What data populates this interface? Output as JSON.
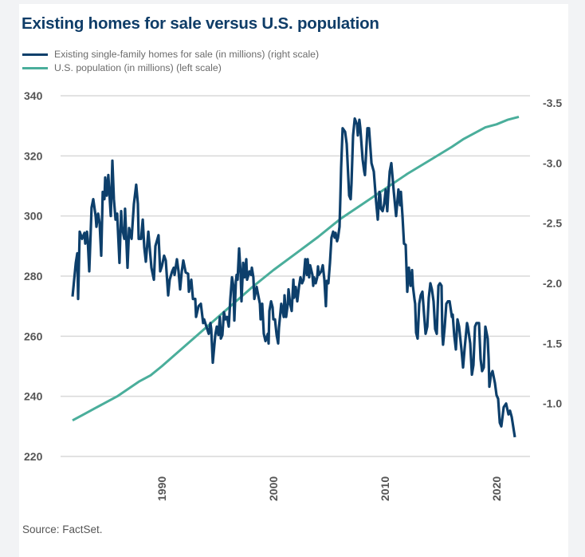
{
  "chart_data": {
    "type": "line",
    "title": "Existing homes for sale versus U.S. population",
    "source": "Source: FactSet.",
    "legend_placement": "top-left",
    "grid": true,
    "xlim": [
      1982,
      2022
    ],
    "x_ticks": [
      "1990",
      "2000",
      "2010",
      "2020"
    ],
    "x_tick_values": [
      1990,
      2000,
      2010,
      2020
    ],
    "left_axis": {
      "ylim": [
        220,
        340
      ],
      "ticks": [
        "340",
        "320",
        "300",
        "280",
        "260",
        "240",
        "220"
      ],
      "tick_values": [
        340,
        320,
        300,
        280,
        260,
        240,
        220
      ]
    },
    "right_axis": {
      "ylim": [
        0.5,
        3.5
      ],
      "ticks": [
        "-3.5",
        "-3.0",
        "-2.5",
        "-2.0",
        "-1.5",
        "-1.0"
      ],
      "tick_values": [
        3.5,
        3.0,
        2.5,
        2.0,
        1.5,
        1.0
      ]
    },
    "series": [
      {
        "name": "Existing single-family homes for sale (in millions) (right scale)",
        "axis": "right",
        "color": "#0d3f6b",
        "x": [
          1982.0,
          1982.29,
          1982.43,
          1982.5,
          1982.64,
          1982.86,
          1983.07,
          1983.14,
          1983.29,
          1983.36,
          1983.5,
          1983.71,
          1983.86,
          1984.07,
          1984.14,
          1984.29,
          1984.43,
          1984.57,
          1984.71,
          1984.86,
          1984.93,
          1985.07,
          1985.21,
          1985.43,
          1985.57,
          1985.71,
          1985.86,
          1986.0,
          1986.21,
          1986.36,
          1986.43,
          1986.64,
          1986.71,
          1986.93,
          1987.07,
          1987.29,
          1987.5,
          1987.71,
          1987.86,
          1987.93,
          1988.14,
          1988.29,
          1988.43,
          1988.57,
          1988.79,
          1989.07,
          1989.29,
          1989.43,
          1989.71,
          1989.86,
          1990.0,
          1990.21,
          1990.36,
          1990.57,
          1990.71,
          1990.93,
          1991.07,
          1991.14,
          1991.36,
          1991.5,
          1991.64,
          1991.79,
          1991.93,
          1992.14,
          1992.36,
          1992.43,
          1992.64,
          1992.79,
          1993.0,
          1993.07,
          1993.29,
          1993.5,
          1993.71,
          1993.79,
          1994.0,
          1994.21,
          1994.36,
          1994.43,
          1994.57,
          1994.79,
          1994.93,
          1995.07,
          1995.21,
          1995.29,
          1995.43,
          1995.57,
          1995.71,
          1995.86,
          1996.0,
          1996.14,
          1996.29,
          1996.43,
          1996.5,
          1996.64,
          1996.71,
          1996.79,
          1996.93,
          1997.07,
          1997.14,
          1997.29,
          1997.43,
          1997.57,
          1997.64,
          1997.86,
          1998.0,
          1998.07,
          1998.21,
          1998.29,
          1998.5,
          1998.64,
          1998.79,
          1998.86,
          1999.0,
          1999.14,
          1999.29,
          1999.5,
          1999.57,
          1999.64,
          1999.79,
          1999.93,
          2000.0,
          2000.14,
          2000.29,
          2000.43,
          2000.5,
          2000.71,
          2000.93,
          2001.0,
          2001.14,
          2001.29,
          2001.36,
          2001.5,
          2001.64,
          2001.79,
          2001.86,
          2002.0,
          2002.14,
          2002.29,
          2002.43,
          2002.57,
          2002.71,
          2002.86,
          2002.93,
          2003.0,
          2003.07,
          2003.21,
          2003.29,
          2003.5,
          2003.57,
          2003.64,
          2003.79,
          2003.93,
          2004.0,
          2004.07,
          2004.29,
          2004.43,
          2004.57,
          2004.71,
          2004.79,
          2004.93,
          2005.07,
          2005.21,
          2005.36,
          2005.5,
          2005.57,
          2005.71,
          2005.79,
          2005.93,
          2006.0,
          2006.07,
          2006.21,
          2006.43,
          2006.57,
          2006.79,
          2006.93,
          2007.0,
          2007.14,
          2007.29,
          2007.5,
          2007.57,
          2007.71,
          2007.79,
          2008.0,
          2008.14,
          2008.21,
          2008.43,
          2008.57,
          2008.79,
          2009.0,
          2009.21,
          2009.36,
          2009.5,
          2009.57,
          2009.64,
          2009.79,
          2009.93,
          2010.07,
          2010.21,
          2010.29,
          2010.43,
          2010.57,
          2010.79,
          2011.0,
          2011.21,
          2011.36,
          2011.43,
          2011.57,
          2011.71,
          2011.86,
          2012.0,
          2012.14,
          2012.29,
          2012.43,
          2012.5,
          2012.64,
          2012.71,
          2012.79,
          2012.93,
          2013.07,
          2013.21,
          2013.36,
          2013.5,
          2013.64,
          2013.79,
          2013.93,
          2014.07,
          2014.21,
          2014.36,
          2014.5,
          2014.64,
          2014.79,
          2014.93,
          2015.07,
          2015.14,
          2015.21,
          2015.36,
          2015.5,
          2015.64,
          2015.79,
          2016.0,
          2016.07,
          2016.21,
          2016.36,
          2016.5,
          2016.64,
          2016.86,
          2017.0,
          2017.14,
          2017.36,
          2017.43,
          2017.64,
          2017.79,
          2017.93,
          2018.07,
          2018.21,
          2018.43,
          2018.57,
          2018.71,
          2018.86,
          2019.0,
          2019.21,
          2019.29,
          2019.36,
          2019.5,
          2019.64,
          2019.86,
          2020.0,
          2020.14,
          2020.29,
          2020.43,
          2020.64,
          2020.86,
          2021.07,
          2021.21,
          2021.36,
          2021.64
        ],
        "y": [
          1.83,
          2.11,
          2.19,
          1.81,
          2.37,
          2.31,
          2.36,
          2.27,
          2.37,
          2.31,
          2.04,
          2.57,
          2.64,
          2.5,
          2.41,
          2.52,
          2.44,
          2.17,
          2.7,
          2.64,
          2.82,
          2.67,
          2.84,
          2.5,
          2.96,
          2.64,
          2.47,
          2.52,
          2.11,
          2.54,
          2.41,
          2.31,
          2.56,
          2.07,
          2.4,
          2.31,
          2.6,
          2.76,
          2.6,
          2.31,
          2.31,
          2.47,
          2.24,
          2.12,
          2.37,
          2.07,
          1.97,
          2.25,
          2.34,
          2.04,
          2.08,
          2.17,
          2.13,
          1.84,
          1.97,
          2.04,
          2.07,
          2.01,
          2.14,
          2.04,
          1.89,
          2.04,
          2.13,
          2.03,
          2.02,
          1.87,
          1.97,
          1.81,
          1.81,
          1.66,
          1.75,
          1.77,
          1.61,
          1.64,
          1.58,
          1.52,
          1.61,
          1.56,
          1.28,
          1.51,
          1.58,
          1.51,
          1.66,
          1.48,
          1.51,
          1.7,
          1.64,
          1.66,
          1.58,
          1.81,
          1.99,
          1.91,
          1.63,
          1.96,
          2.01,
          1.97,
          2.23,
          2.01,
          1.79,
          2.11,
          1.99,
          2.14,
          1.97,
          2.04,
          2.01,
          2.07,
          1.99,
          1.81,
          1.91,
          1.84,
          1.77,
          1.64,
          1.77,
          1.52,
          1.46,
          1.52,
          1.44,
          1.71,
          1.79,
          1.74,
          1.64,
          1.64,
          1.51,
          1.44,
          1.57,
          1.77,
          1.66,
          1.84,
          1.66,
          1.77,
          1.89,
          1.77,
          1.71,
          1.97,
          1.82,
          1.91,
          1.79,
          1.91,
          1.99,
          1.94,
          1.97,
          2.14,
          2.05,
          2.01,
          2.14,
          1.99,
          2.09,
          2.01,
          1.92,
          1.99,
          1.94,
          1.99,
          2.08,
          2.01,
          2.04,
          2.09,
          1.97,
          1.75,
          1.96,
          1.94,
          2.11,
          2.32,
          2.37,
          2.32,
          2.36,
          2.29,
          2.32,
          2.41,
          2.64,
          2.9,
          3.23,
          3.2,
          3.1,
          2.67,
          2.64,
          2.77,
          3.17,
          3.31,
          3.26,
          3.17,
          3.3,
          3.23,
          2.97,
          2.87,
          2.84,
          3.23,
          3.23,
          2.94,
          2.87,
          2.62,
          2.47,
          2.7,
          2.68,
          2.56,
          2.54,
          2.6,
          2.72,
          2.54,
          2.68,
          2.87,
          2.94,
          2.7,
          2.5,
          2.72,
          2.59,
          2.7,
          2.5,
          2.27,
          2.26,
          1.87,
          2.07,
          1.92,
          2.05,
          1.92,
          1.81,
          1.77,
          1.53,
          1.48,
          1.77,
          1.84,
          1.87,
          1.69,
          1.52,
          1.58,
          1.82,
          1.94,
          1.89,
          1.79,
          1.56,
          1.52,
          1.92,
          1.94,
          1.92,
          1.52,
          1.43,
          1.58,
          1.77,
          1.79,
          1.79,
          1.66,
          1.68,
          1.51,
          1.39,
          1.64,
          1.58,
          1.39,
          1.24,
          1.4,
          1.61,
          1.58,
          1.44,
          1.18,
          1.26,
          1.58,
          1.61,
          1.61,
          1.31,
          1.21,
          1.24,
          1.58,
          1.48,
          1.31,
          1.08,
          1.18,
          1.21,
          1.11,
          1.01,
          0.98,
          0.78,
          0.75,
          0.91,
          0.94,
          0.85,
          0.88,
          0.83,
          0.66
        ]
      },
      {
        "name": "U.S. population (in millions) (left scale)",
        "axis": "left",
        "color": "#4aae9b",
        "x": [
          1982,
          1983,
          1984,
          1985,
          1986,
          1987,
          1988,
          1989,
          1990,
          1992,
          1994,
          1996,
          1998,
          2000,
          2002,
          2004,
          2005,
          2006,
          2008,
          2010,
          2012,
          2014,
          2016,
          2017,
          2018,
          2019,
          2020,
          2021,
          2022
        ],
        "y": [
          232,
          234,
          236,
          238,
          240,
          242.5,
          245,
          247,
          250,
          256.5,
          263,
          269.5,
          276,
          282,
          287.5,
          293,
          296,
          299,
          304,
          309,
          314,
          318.5,
          323,
          325.5,
          327.5,
          329.5,
          330.5,
          332,
          333
        ]
      }
    ]
  }
}
